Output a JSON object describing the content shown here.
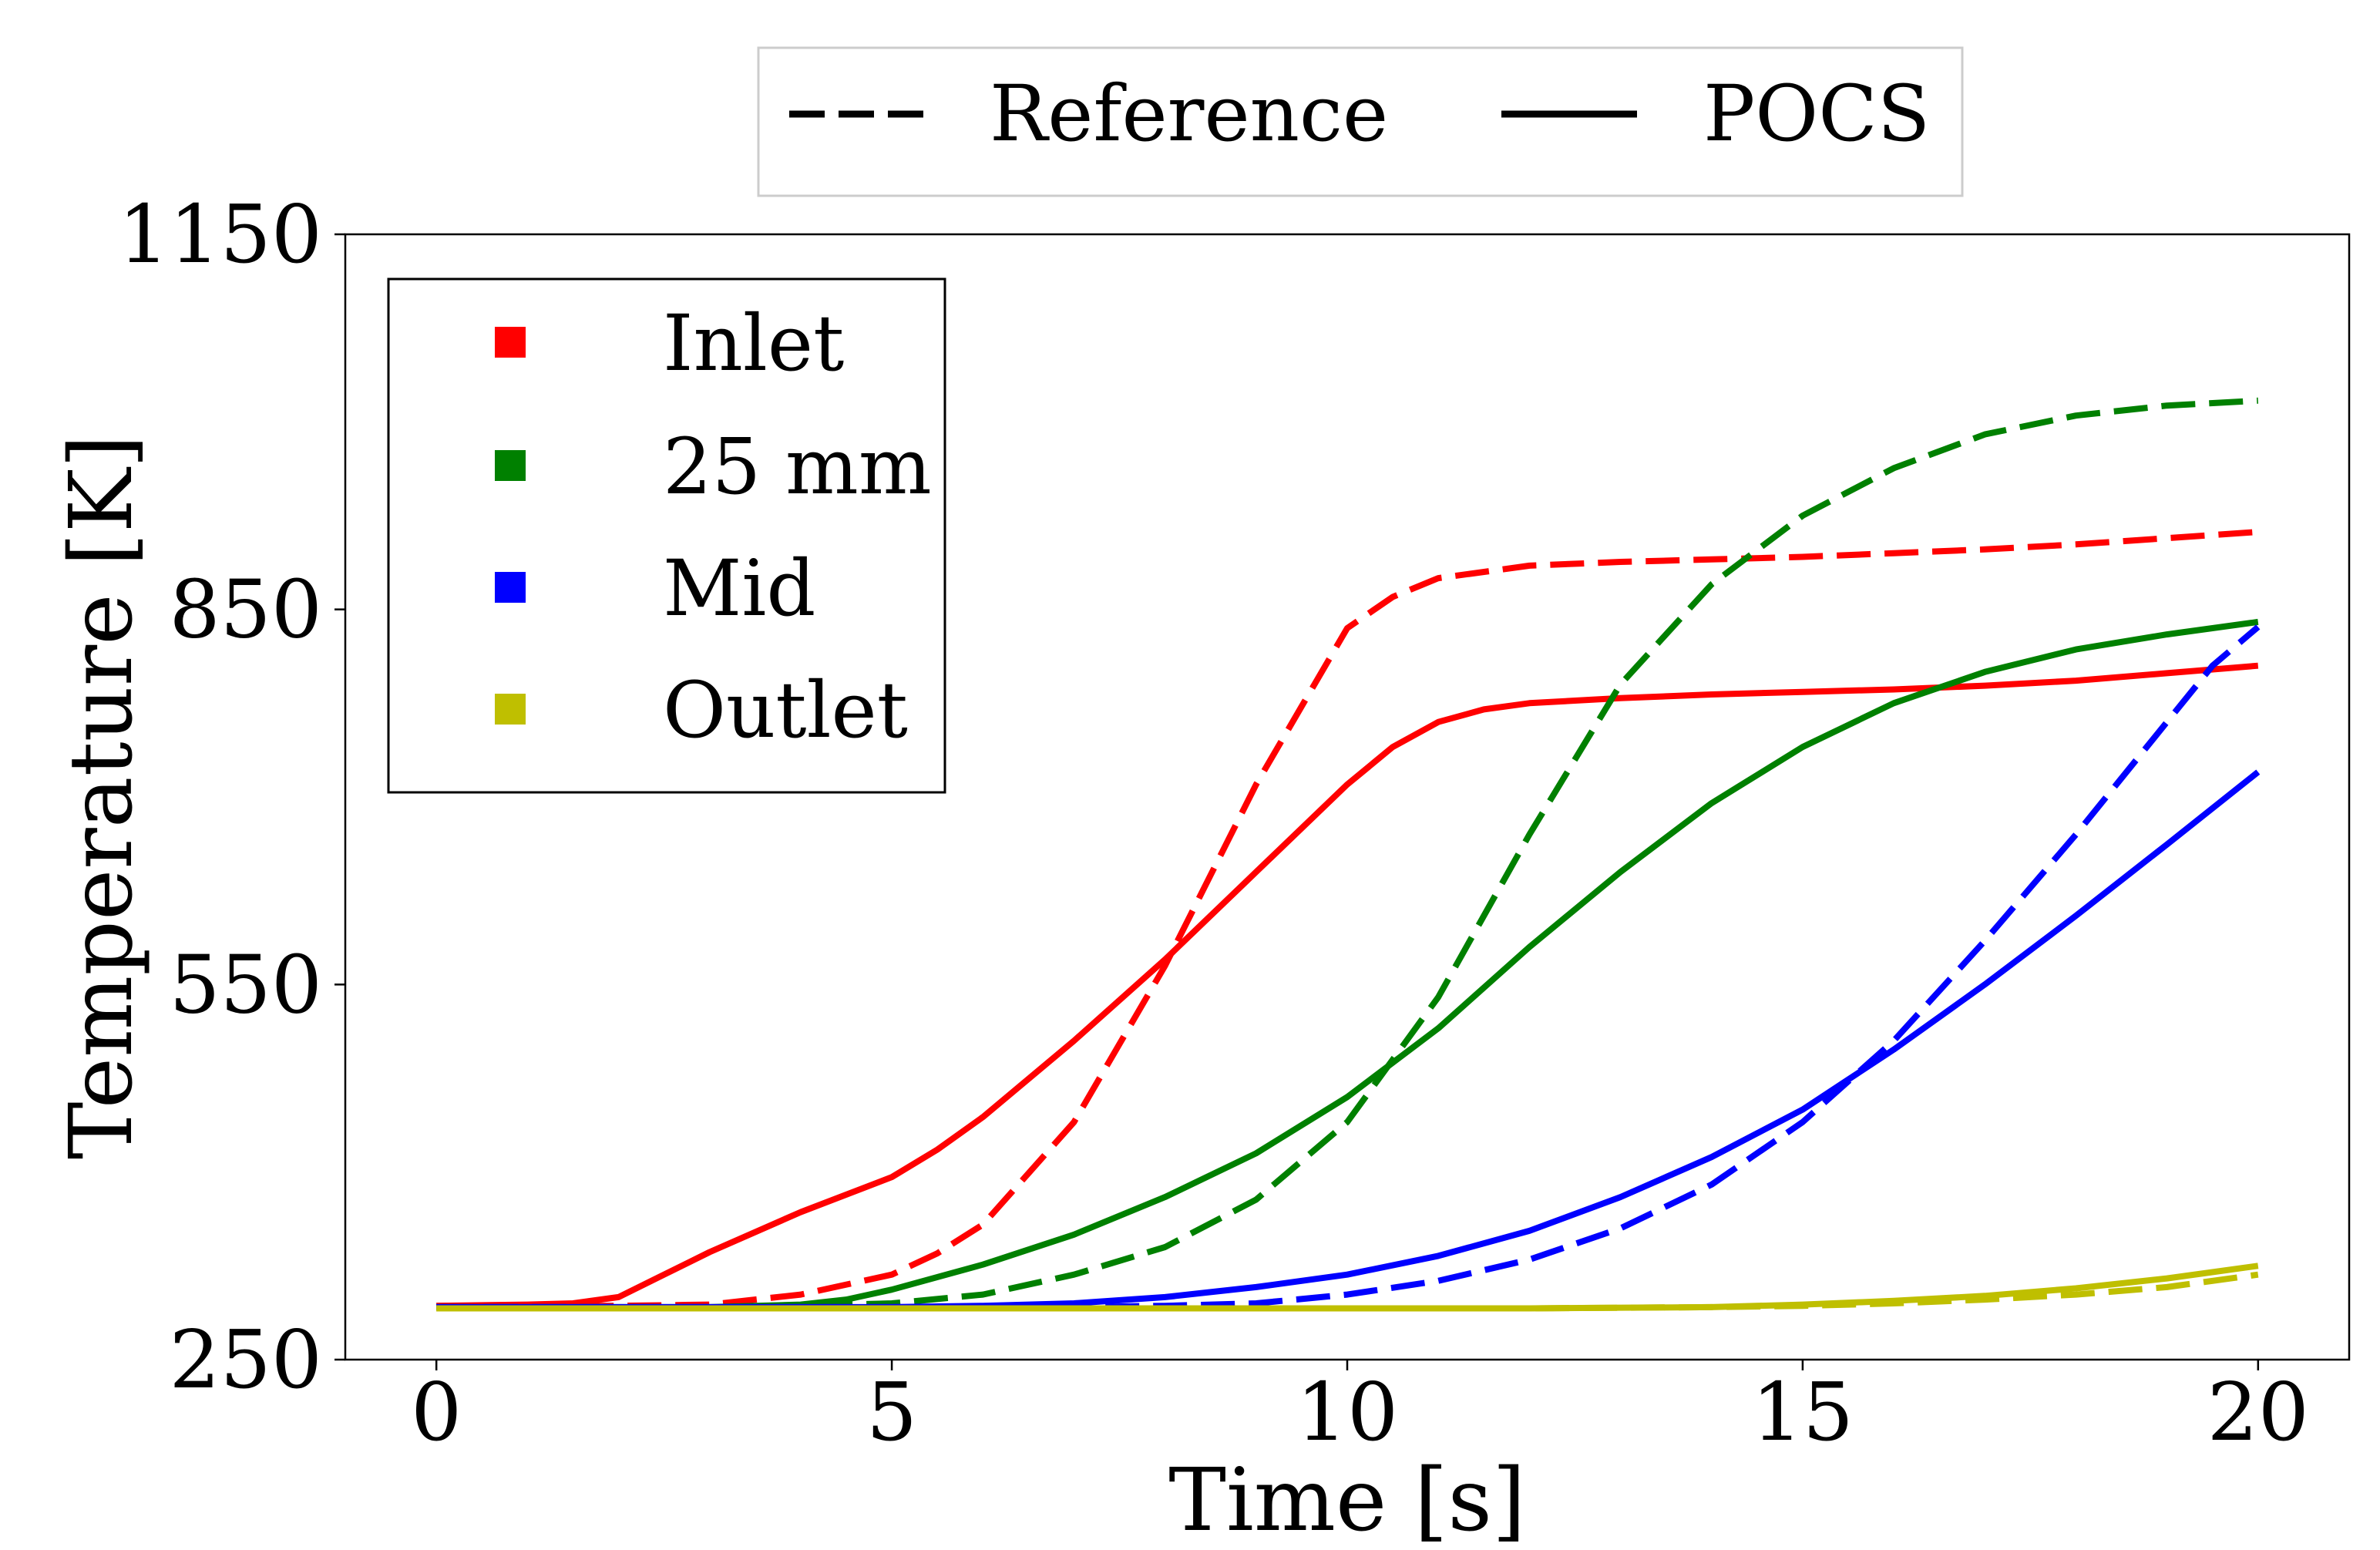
{
  "chart_data": {
    "type": "line",
    "xlabel": "Time [s]",
    "ylabel": "Temperature [K]",
    "xlim": [
      -1,
      21
    ],
    "ylim": [
      250,
      1150
    ],
    "xticks": [
      0,
      5,
      10,
      15,
      20
    ],
    "yticks": [
      250,
      550,
      850,
      1150
    ],
    "grid": false,
    "style_legend": {
      "placement": "top-center-outside",
      "entries": [
        {
          "label": "Reference",
          "dash": "dashed"
        },
        {
          "label": "POCS",
          "dash": "solid"
        }
      ]
    },
    "color_legend": {
      "placement": "top-left",
      "entries": [
        {
          "label": "Inlet",
          "color": "#ff0000"
        },
        {
          "label": "25 mm",
          "color": "#008000"
        },
        {
          "label": "Mid",
          "color": "#0000ff"
        },
        {
          "label": "Outlet",
          "color": "#bfbf00"
        }
      ]
    },
    "series": [
      {
        "name": "Inlet Reference",
        "group": "Inlet",
        "style": "dashed",
        "color": "#ff0000",
        "x": [
          0,
          2,
          3,
          4,
          5,
          5.5,
          6,
          7,
          8,
          9,
          10,
          10.5,
          11,
          12,
          13,
          14,
          15,
          16,
          17,
          18,
          19,
          20
        ],
        "y": [
          293,
          293,
          294,
          302,
          318,
          335,
          358,
          440,
          565,
          710,
          835,
          860,
          875,
          885,
          888,
          890,
          892,
          895,
          898,
          902,
          907,
          912
        ]
      },
      {
        "name": "Inlet POCS",
        "group": "Inlet",
        "style": "solid",
        "color": "#ff0000",
        "x": [
          0,
          1,
          1.5,
          2,
          2.5,
          3,
          4,
          5,
          5.5,
          6,
          7,
          8,
          9,
          10,
          10.5,
          11,
          11.5,
          12,
          13,
          14,
          15,
          16,
          17,
          18,
          19,
          20
        ],
        "y": [
          293,
          294,
          295,
          300,
          318,
          336,
          368,
          396,
          418,
          444,
          505,
          570,
          640,
          710,
          740,
          760,
          770,
          775,
          779,
          782,
          784,
          786,
          789,
          793,
          799,
          805
        ]
      },
      {
        "name": "25 mm Reference",
        "group": "25 mm",
        "style": "dashed",
        "color": "#008000",
        "x": [
          0,
          3,
          4,
          5,
          6,
          7,
          8,
          9,
          10,
          11,
          12,
          13,
          14,
          15,
          16,
          17,
          18,
          19,
          20
        ],
        "y": [
          292,
          292,
          293,
          295,
          302,
          318,
          340,
          378,
          440,
          540,
          670,
          790,
          870,
          925,
          963,
          990,
          1005,
          1013,
          1017
        ]
      },
      {
        "name": "25 mm POCS",
        "group": "25 mm",
        "style": "solid",
        "color": "#008000",
        "x": [
          0,
          3,
          4,
          4.5,
          5,
          6,
          7,
          8,
          9,
          10,
          11,
          12,
          13,
          14,
          15,
          16,
          17,
          18,
          19,
          20
        ],
        "y": [
          292,
          292,
          294,
          298,
          306,
          326,
          350,
          380,
          415,
          460,
          515,
          580,
          640,
          695,
          740,
          775,
          800,
          818,
          830,
          840
        ]
      },
      {
        "name": "Mid Reference",
        "group": "Mid",
        "style": "dashed",
        "color": "#0000ff",
        "x": [
          0,
          5,
          6,
          7,
          8,
          9,
          10,
          11,
          12,
          13,
          14,
          15,
          16,
          17,
          18,
          19,
          19.5,
          20
        ],
        "y": [
          292,
          292,
          292,
          292,
          293,
          295,
          302,
          313,
          330,
          355,
          390,
          440,
          505,
          585,
          670,
          760,
          805,
          836
        ]
      },
      {
        "name": "Mid POCS",
        "group": "Mid",
        "style": "solid",
        "color": "#0000ff",
        "x": [
          0,
          5,
          6,
          7,
          8,
          9,
          10,
          11,
          12,
          13,
          14,
          15,
          16,
          17,
          18,
          19,
          20
        ],
        "y": [
          292,
          292,
          293,
          295,
          300,
          308,
          318,
          333,
          353,
          380,
          412,
          450,
          498,
          550,
          605,
          662,
          720
        ]
      },
      {
        "name": "Outlet Reference",
        "group": "Outlet",
        "style": "dashed",
        "color": "#bfbf00",
        "x": [
          0,
          4,
          8,
          10,
          12,
          14,
          15,
          16,
          17,
          18,
          19,
          20
        ],
        "y": [
          291,
          291,
          291,
          291,
          291,
          292,
          293,
          295,
          298,
          302,
          308,
          318
        ]
      },
      {
        "name": "Outlet POCS",
        "group": "Outlet",
        "style": "solid",
        "color": "#bfbf00",
        "x": [
          0,
          4,
          8,
          10,
          12,
          14,
          15,
          16,
          17,
          18,
          19,
          20
        ],
        "y": [
          291,
          291,
          291,
          291,
          291,
          292,
          294,
          297,
          301,
          307,
          315,
          325
        ]
      }
    ]
  }
}
